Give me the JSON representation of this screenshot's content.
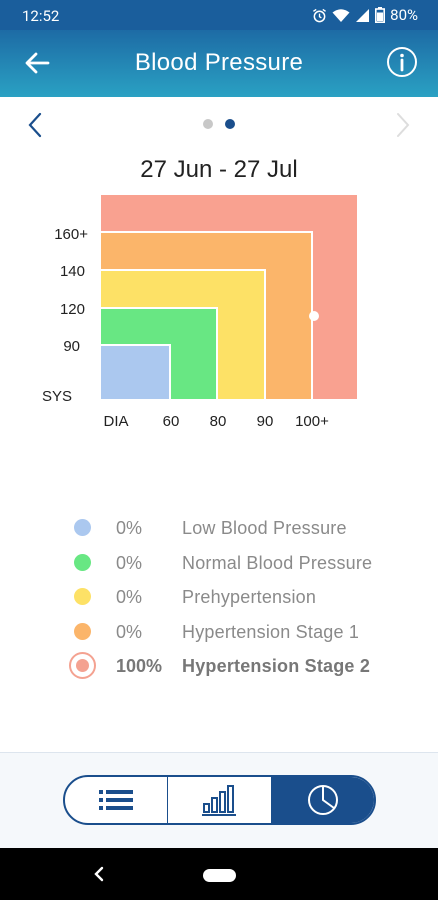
{
  "status_bar": {
    "time": "12:52",
    "battery": "80%"
  },
  "app_bar": {
    "title": "Blood Pressure"
  },
  "pager": {
    "current_page": 2,
    "total_pages": 2
  },
  "period": "27 Jun - 27 Jul",
  "chart_data": {
    "type": "heatmap",
    "y_label": "SYS",
    "x_label": "DIA",
    "y_ticks": [
      "90",
      "120",
      "140",
      "160+"
    ],
    "x_ticks": [
      "60",
      "80",
      "90",
      "100+"
    ],
    "zones": [
      {
        "name": "Low Blood Pressure",
        "color": "#abc8ef",
        "dia_max": "60",
        "sys_max": "90"
      },
      {
        "name": "Normal Blood Pressure",
        "color": "#68e783",
        "dia_max": "80",
        "sys_max": "120"
      },
      {
        "name": "Prehypertension",
        "color": "#fde166",
        "dia_max": "90",
        "sys_max": "140"
      },
      {
        "name": "Hypertension Stage 1",
        "color": "#fbb56a",
        "dia_max": "100",
        "sys_max": "160"
      },
      {
        "name": "Hypertension Stage 2",
        "color": "#f9a190",
        "dia_max": "100+",
        "sys_max": "160+"
      }
    ],
    "points": [
      {
        "dia": 100,
        "sys": 120
      }
    ]
  },
  "legend": [
    {
      "pct": "0%",
      "label": "Low Blood Pressure",
      "color": "#abc8ef",
      "active": false
    },
    {
      "pct": "0%",
      "label": "Normal Blood Pressure",
      "color": "#68e783",
      "active": false
    },
    {
      "pct": "0%",
      "label": "Prehypertension",
      "color": "#fde166",
      "active": false
    },
    {
      "pct": "0%",
      "label": "Hypertension Stage 1",
      "color": "#fbb56a",
      "active": false
    },
    {
      "pct": "100%",
      "label": "Hypertension Stage 2",
      "color": "#f9a190",
      "active": true
    }
  ],
  "view_switcher": {
    "options": [
      {
        "name": "list-view",
        "icon": "list-icon",
        "selected": false
      },
      {
        "name": "bar-chart-view",
        "icon": "bar-chart-icon",
        "selected": false
      },
      {
        "name": "pie-chart-view",
        "icon": "pie-chart-icon",
        "selected": true
      }
    ]
  },
  "colors": {
    "primary": "#1a4e8c",
    "app_bar_top": "#1d6ba5",
    "app_bar_bottom": "#2aa1c3"
  }
}
